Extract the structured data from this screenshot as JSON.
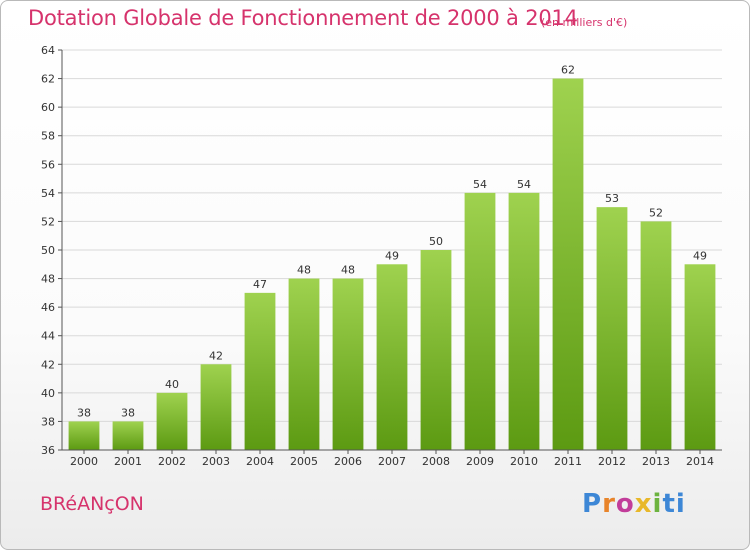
{
  "header": {
    "title": "Dotation Globale de Fonctionnement de 2000 à 2014",
    "subtitle": "(en milliers d'€)"
  },
  "footer": {
    "commune": "BRéANçON",
    "brand": "Proxiti"
  },
  "colors": {
    "title": "#d6336c",
    "bar_top": "#9fd24f",
    "bar_bottom": "#5c9a12",
    "grid": "#d9d9d9",
    "axis": "#555555"
  },
  "chart_data": {
    "type": "bar",
    "categories": [
      "2000",
      "2001",
      "2002",
      "2003",
      "2004",
      "2005",
      "2006",
      "2007",
      "2008",
      "2009",
      "2010",
      "2011",
      "2012",
      "2013",
      "2014"
    ],
    "values": [
      38,
      38,
      40,
      42,
      47,
      48,
      48,
      49,
      50,
      54,
      54,
      62,
      53,
      52,
      49
    ],
    "data_labels": [
      "38",
      "38",
      "40",
      "42",
      "47",
      "48",
      "48",
      "49",
      "50",
      "54",
      "54",
      "62",
      "53",
      "52",
      "49"
    ],
    "y_ticks": [
      36,
      38,
      40,
      42,
      44,
      46,
      48,
      50,
      52,
      54,
      56,
      58,
      60,
      62,
      64
    ],
    "y_tick_labels": [
      "36",
      "38",
      "40",
      "42",
      "44",
      "46",
      "48",
      "50",
      "52",
      "54",
      "56",
      "58",
      "60",
      "62",
      "64"
    ],
    "ylim": [
      36,
      64
    ],
    "grid": true,
    "legend": "none"
  }
}
